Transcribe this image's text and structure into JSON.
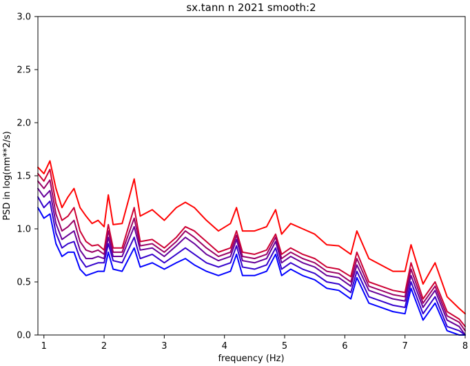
{
  "chart_data": {
    "type": "line",
    "title": "sx.tann n 2021 smooth:2",
    "xlabel": "frequency (Hz)",
    "ylabel": "PSD in log(nm**2/s)",
    "xlim": [
      0.9,
      8.0
    ],
    "ylim": [
      0.0,
      3.0
    ],
    "xticks": [
      1,
      2,
      3,
      4,
      5,
      6,
      7,
      8
    ],
    "yticks": [
      0.0,
      0.5,
      1.0,
      1.5,
      2.0,
      2.5,
      3.0
    ],
    "xtick_labels": [
      "1",
      "2",
      "3",
      "4",
      "5",
      "6",
      "7",
      "8"
    ],
    "ytick_labels": [
      "0.0",
      "0.5",
      "1.0",
      "1.5",
      "2.0",
      "2.5",
      "3.0"
    ],
    "grid": false,
    "legend": false,
    "colors": [
      "#ff0000",
      "#cc0033",
      "#990066",
      "#660099",
      "#3300cc",
      "#0000ff"
    ],
    "x": [
      0.9,
      1.0,
      1.1,
      1.2,
      1.3,
      1.4,
      1.5,
      1.6,
      1.7,
      1.8,
      1.9,
      2.0,
      2.07,
      2.15,
      2.3,
      2.5,
      2.6,
      2.8,
      3.0,
      3.2,
      3.35,
      3.5,
      3.7,
      3.9,
      4.1,
      4.2,
      4.3,
      4.5,
      4.7,
      4.85,
      4.95,
      5.1,
      5.3,
      5.5,
      5.7,
      5.9,
      6.1,
      6.2,
      6.4,
      6.6,
      6.8,
      7.0,
      7.1,
      7.3,
      7.5,
      7.7,
      7.9,
      8.0
    ],
    "series": [
      {
        "values": [
          1.58,
          1.52,
          1.64,
          1.38,
          1.2,
          1.3,
          1.38,
          1.2,
          1.12,
          1.05,
          1.08,
          1.02,
          1.32,
          1.04,
          1.05,
          1.47,
          1.12,
          1.18,
          1.08,
          1.2,
          1.25,
          1.2,
          1.08,
          0.98,
          1.05,
          1.2,
          0.98,
          0.98,
          1.02,
          1.18,
          0.95,
          1.05,
          1.0,
          0.95,
          0.85,
          0.84,
          0.76,
          0.98,
          0.72,
          0.66,
          0.6,
          0.6,
          0.85,
          0.48,
          0.68,
          0.36,
          0.25,
          0.2
        ]
      },
      {
        "values": [
          1.52,
          1.45,
          1.56,
          1.24,
          1.08,
          1.12,
          1.2,
          0.98,
          0.88,
          0.84,
          0.85,
          0.8,
          1.04,
          0.82,
          0.82,
          1.2,
          0.88,
          0.9,
          0.82,
          0.92,
          1.02,
          0.98,
          0.88,
          0.78,
          0.82,
          0.98,
          0.78,
          0.76,
          0.8,
          0.95,
          0.76,
          0.82,
          0.76,
          0.72,
          0.64,
          0.62,
          0.55,
          0.78,
          0.5,
          0.46,
          0.42,
          0.4,
          0.68,
          0.34,
          0.5,
          0.22,
          0.15,
          0.08
        ]
      },
      {
        "values": [
          1.45,
          1.38,
          1.46,
          1.14,
          0.98,
          1.02,
          1.08,
          0.88,
          0.8,
          0.78,
          0.8,
          0.76,
          0.98,
          0.78,
          0.78,
          1.1,
          0.84,
          0.86,
          0.78,
          0.88,
          0.98,
          0.92,
          0.82,
          0.74,
          0.78,
          0.94,
          0.74,
          0.72,
          0.76,
          0.92,
          0.72,
          0.78,
          0.72,
          0.68,
          0.6,
          0.58,
          0.5,
          0.72,
          0.46,
          0.42,
          0.38,
          0.36,
          0.62,
          0.3,
          0.46,
          0.18,
          0.12,
          0.04
        ]
      },
      {
        "values": [
          1.38,
          1.3,
          1.36,
          1.05,
          0.9,
          0.94,
          0.98,
          0.8,
          0.72,
          0.72,
          0.74,
          0.72,
          0.92,
          0.74,
          0.74,
          1.02,
          0.8,
          0.82,
          0.74,
          0.84,
          0.92,
          0.86,
          0.76,
          0.7,
          0.74,
          0.9,
          0.7,
          0.68,
          0.72,
          0.88,
          0.68,
          0.74,
          0.68,
          0.64,
          0.56,
          0.54,
          0.46,
          0.66,
          0.42,
          0.38,
          0.34,
          0.32,
          0.56,
          0.26,
          0.42,
          0.14,
          0.08,
          0.0
        ]
      },
      {
        "values": [
          1.3,
          1.2,
          1.26,
          0.96,
          0.82,
          0.86,
          0.88,
          0.72,
          0.64,
          0.66,
          0.68,
          0.68,
          0.86,
          0.7,
          0.68,
          0.92,
          0.72,
          0.76,
          0.68,
          0.76,
          0.82,
          0.76,
          0.68,
          0.64,
          0.68,
          0.84,
          0.64,
          0.62,
          0.66,
          0.82,
          0.62,
          0.68,
          0.62,
          0.58,
          0.5,
          0.48,
          0.4,
          0.6,
          0.36,
          0.32,
          0.28,
          0.26,
          0.5,
          0.2,
          0.36,
          0.08,
          0.04,
          0.0
        ]
      },
      {
        "values": [
          1.2,
          1.1,
          1.14,
          0.86,
          0.74,
          0.78,
          0.78,
          0.62,
          0.56,
          0.58,
          0.6,
          0.6,
          0.78,
          0.62,
          0.6,
          0.82,
          0.64,
          0.68,
          0.62,
          0.68,
          0.72,
          0.66,
          0.6,
          0.56,
          0.6,
          0.76,
          0.56,
          0.56,
          0.6,
          0.76,
          0.56,
          0.62,
          0.56,
          0.52,
          0.44,
          0.42,
          0.34,
          0.54,
          0.3,
          0.26,
          0.22,
          0.2,
          0.44,
          0.14,
          0.3,
          0.04,
          0.0,
          0.0
        ]
      }
    ]
  }
}
